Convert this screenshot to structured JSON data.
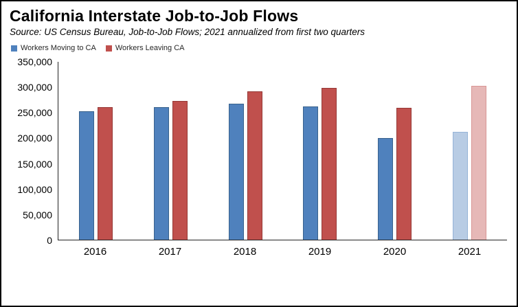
{
  "title": "California Interstate Job-to-Job Flows",
  "source": "Source:  US Census Bureau, Job-to-Job Flows; 2021 annualized from first two quarters",
  "legend": [
    {
      "label": "Workers Moving to CA",
      "color": "#4F81BD"
    },
    {
      "label": "Workers Leaving CA",
      "color": "#C0504D"
    }
  ],
  "chart_data": {
    "type": "bar",
    "title": "California Interstate Job-to-Job Flows",
    "categories": [
      "2016",
      "2017",
      "2018",
      "2019",
      "2020",
      "2021"
    ],
    "series": [
      {
        "name": "Workers Moving to CA",
        "key": "workers-moving-to-ca",
        "color": "#4F81BD",
        "border_color": "#38618C",
        "projected_color": "#B8CCE4",
        "projected_border_color": "#95B3D7",
        "values": [
          252000,
          260000,
          267000,
          261000,
          199000,
          212000
        ]
      },
      {
        "name": "Workers Leaving CA",
        "key": "workers-leaving-ca",
        "color": "#C0504D",
        "border_color": "#953734",
        "projected_color": "#E6B8B7",
        "projected_border_color": "#D99694",
        "values": [
          260000,
          272000,
          291000,
          297000,
          258000,
          302000
        ]
      }
    ],
    "projected_categories": [
      "2021"
    ],
    "ylim": [
      0,
      350000
    ],
    "y_ticks": [
      0,
      50000,
      100000,
      150000,
      200000,
      250000,
      300000,
      350000
    ],
    "grid": false,
    "legend_position": "top-left",
    "note": "2021 bars shown in lighter shades (annualized from first two quarters)"
  }
}
